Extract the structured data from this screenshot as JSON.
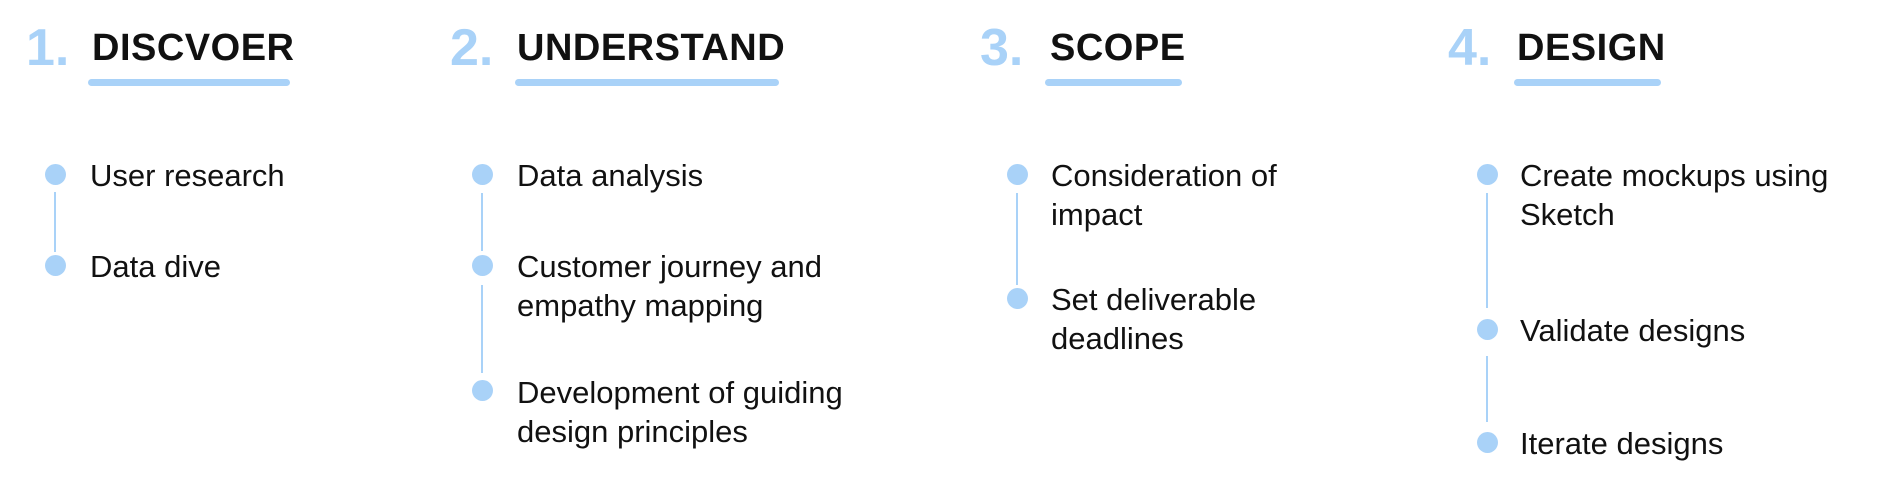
{
  "accent_color": "#a9d2f8",
  "stages": [
    {
      "number": "1.",
      "title": "DISCVOER",
      "items": [
        {
          "lines": [
            "User research"
          ]
        },
        {
          "lines": [
            "Data dive"
          ]
        }
      ]
    },
    {
      "number": "2.",
      "title": "UNDERSTAND",
      "items": [
        {
          "lines": [
            "Data analysis"
          ]
        },
        {
          "lines": [
            "Customer journey and",
            "empathy mapping"
          ]
        },
        {
          "lines": [
            "Development of guiding",
            "design principles"
          ]
        }
      ]
    },
    {
      "number": "3.",
      "title": "SCOPE",
      "items": [
        {
          "lines": [
            "Consideration of",
            "impact"
          ]
        },
        {
          "lines": [
            "Set deliverable",
            "deadlines"
          ]
        }
      ]
    },
    {
      "number": "4.",
      "title": "DESIGN",
      "items": [
        {
          "lines": [
            "Create mockups using",
            "Sketch"
          ]
        },
        {
          "lines": [
            "Validate designs"
          ]
        },
        {
          "lines": [
            "Iterate designs"
          ]
        }
      ]
    }
  ]
}
